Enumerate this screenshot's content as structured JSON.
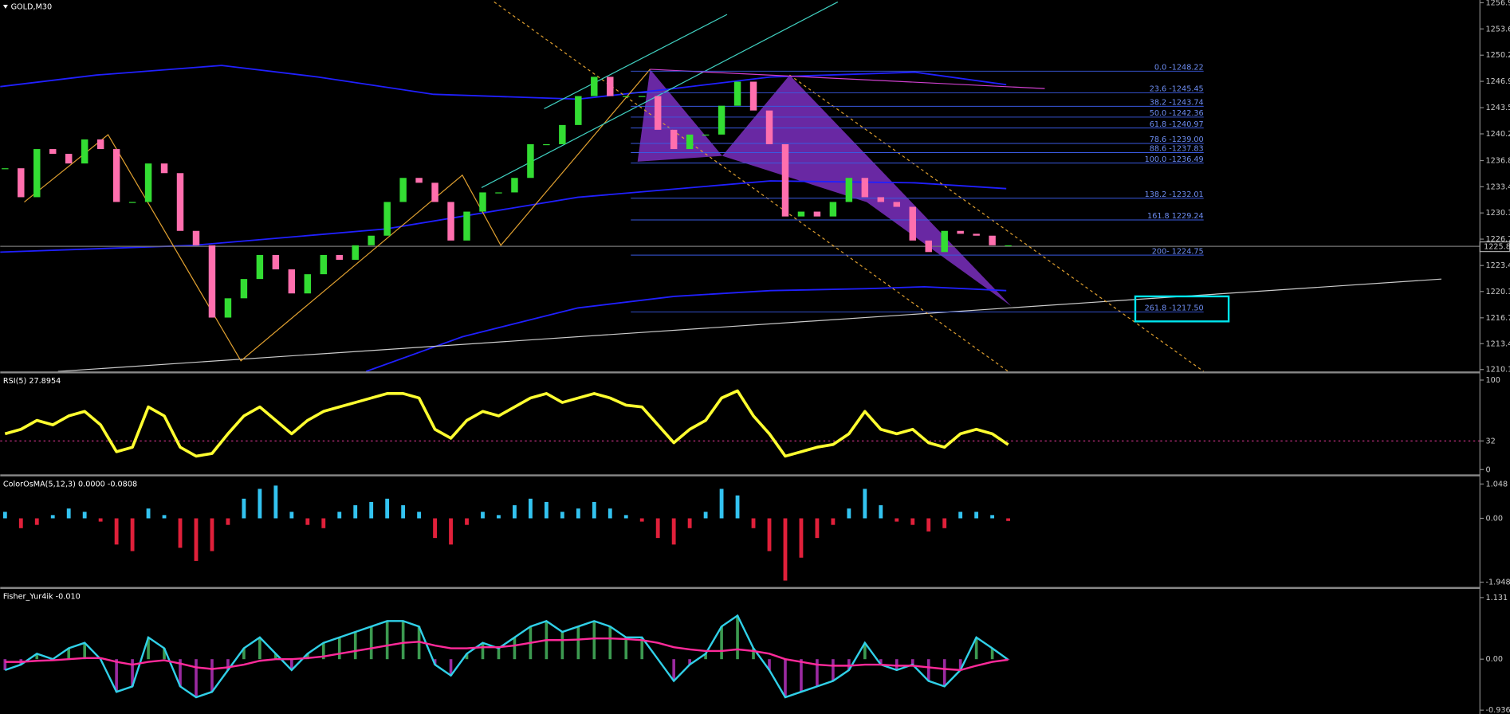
{
  "main": {
    "title": "GOLD,M30",
    "ylim": [
      1210.03,
      1257.3
    ],
    "price_ticks": [
      1210.15,
      1213.45,
      1216.75,
      1220.11,
      1223.42,
      1226.79,
      1230.13,
      1233.47,
      1236.81,
      1240.22,
      1243.56,
      1246.92,
      1250.26,
      1253.61,
      1256.95
    ],
    "current_price": 1225.82,
    "fib_levels": [
      {
        "label": "0.0 -1248.22",
        "value": 1248.22
      },
      {
        "label": "23.6 -1245.45",
        "value": 1245.45
      },
      {
        "label": "38.2 -1243.74",
        "value": 1243.74
      },
      {
        "label": "50.0 -1242.36",
        "value": 1242.36
      },
      {
        "label": "61.8 -1240.97",
        "value": 1240.97
      },
      {
        "label": "78.6 -1239.00",
        "value": 1239.0
      },
      {
        "label": "88.6 -1237.83",
        "value": 1237.83
      },
      {
        "label": "100.0 -1236.49",
        "value": 1236.49
      },
      {
        "label": "138.2 -1232.01",
        "value": 1232.01
      },
      {
        "label": "161.8 1229.24",
        "value": 1229.24
      },
      {
        "label": "200- 1224.75",
        "value": 1224.75
      },
      {
        "label": "261.8 -1217.50",
        "value": 1217.5
      }
    ],
    "closes": [
      1235.83,
      1232.14,
      1238.28,
      1237.67,
      1236.44,
      1239.51,
      1238.28,
      1231.53,
      1231.53,
      1236.44,
      1235.21,
      1227.84,
      1226.0,
      1216.78,
      1219.24,
      1221.7,
      1224.77,
      1222.93,
      1219.86,
      1222.31,
      1224.77,
      1224.15,
      1226.0,
      1227.23,
      1231.53,
      1234.6,
      1233.98,
      1231.53,
      1226.61,
      1230.3,
      1232.75,
      1232.75,
      1234.6,
      1238.9,
      1238.9,
      1241.35,
      1245.04,
      1247.5,
      1245.04,
      1245.04,
      1245.04,
      1240.74,
      1238.28,
      1240.13,
      1240.13,
      1243.81,
      1246.88,
      1243.2,
      1238.9,
      1229.68,
      1230.3,
      1229.68,
      1231.53,
      1234.6,
      1232.14,
      1231.53,
      1230.91,
      1226.61,
      1225.14,
      1227.84,
      1227.47,
      1227.23,
      1226.0,
      1226.0
    ]
  },
  "rsi": {
    "title": "RSI(5) 27.8954",
    "ylim": [
      0,
      100
    ],
    "ticks": [
      100,
      32,
      0
    ],
    "level": 32,
    "values": [
      40,
      45,
      55,
      50,
      60,
      65,
      50,
      20,
      25,
      70,
      60,
      25,
      15,
      18,
      40,
      60,
      70,
      55,
      40,
      55,
      65,
      70,
      75,
      80,
      85,
      85,
      80,
      45,
      35,
      55,
      65,
      60,
      70,
      80,
      85,
      75,
      80,
      85,
      80,
      72,
      70,
      50,
      30,
      45,
      55,
      80,
      88,
      60,
      40,
      15,
      20,
      25,
      28,
      40,
      65,
      45,
      40,
      45,
      30,
      25,
      40,
      45,
      40,
      27.8954
    ]
  },
  "osma": {
    "title": "ColorOsMA(5,12,3) 0.0000 -0.0808",
    "ylim": [
      -1.9485,
      1.048
    ],
    "ticks": [
      1.048,
      {
        "value": 0,
        "label": "0.00"
      },
      -1.9485
    ],
    "values": [
      0.2,
      -0.3,
      -0.2,
      0.1,
      0.3,
      0.2,
      -0.1,
      -0.8,
      -1.0,
      0.3,
      0.1,
      -0.9,
      -1.3,
      -1.0,
      -0.2,
      0.6,
      0.9,
      1.0,
      0.2,
      -0.2,
      -0.3,
      0.2,
      0.4,
      0.5,
      0.6,
      0.4,
      0.2,
      -0.6,
      -0.8,
      -0.2,
      0.2,
      0.1,
      0.4,
      0.6,
      0.5,
      0.2,
      0.3,
      0.5,
      0.3,
      0.1,
      -0.1,
      -0.6,
      -0.8,
      -0.3,
      0.2,
      0.9,
      0.7,
      -0.3,
      -1.0,
      -1.9,
      -1.2,
      -0.6,
      -0.2,
      0.3,
      0.9,
      0.4,
      -0.1,
      -0.2,
      -0.4,
      -0.3,
      0.2,
      0.2,
      0.1,
      -0.0808
    ]
  },
  "fisher": {
    "title": "Fisher_Yur4ik -0.010",
    "ylim": [
      -0.936,
      1.131
    ],
    "ticks": [
      1.131,
      {
        "value": 0,
        "label": "0.00"
      },
      -0.936
    ],
    "values": [
      -0.2,
      -0.1,
      0.1,
      0.0,
      0.2,
      0.3,
      0.0,
      -0.6,
      -0.5,
      0.4,
      0.2,
      -0.5,
      -0.7,
      -0.6,
      -0.2,
      0.2,
      0.4,
      0.1,
      -0.2,
      0.1,
      0.3,
      0.4,
      0.5,
      0.6,
      0.7,
      0.7,
      0.6,
      -0.1,
      -0.3,
      0.1,
      0.3,
      0.2,
      0.4,
      0.6,
      0.7,
      0.5,
      0.6,
      0.7,
      0.6,
      0.4,
      0.4,
      0.0,
      -0.4,
      -0.1,
      0.1,
      0.6,
      0.8,
      0.2,
      -0.2,
      -0.7,
      -0.6,
      -0.5,
      -0.4,
      -0.2,
      0.3,
      -0.1,
      -0.2,
      -0.1,
      -0.4,
      -0.5,
      -0.2,
      0.4,
      0.2,
      -0.01
    ],
    "signal": [
      -0.05,
      -0.05,
      -0.03,
      -0.02,
      0.0,
      0.02,
      0.02,
      -0.05,
      -0.1,
      -0.05,
      -0.02,
      -0.08,
      -0.15,
      -0.18,
      -0.15,
      -0.1,
      -0.03,
      0.0,
      0.0,
      0.02,
      0.05,
      0.1,
      0.15,
      0.2,
      0.25,
      0.3,
      0.32,
      0.25,
      0.2,
      0.2,
      0.22,
      0.22,
      0.25,
      0.3,
      0.35,
      0.35,
      0.36,
      0.38,
      0.38,
      0.37,
      0.35,
      0.3,
      0.22,
      0.18,
      0.15,
      0.15,
      0.18,
      0.15,
      0.1,
      0.0,
      -0.05,
      -0.1,
      -0.12,
      -0.12,
      -0.1,
      -0.1,
      -0.12,
      -0.12,
      -0.15,
      -0.18,
      -0.2,
      -0.12,
      -0.05,
      -0.01
    ]
  }
}
